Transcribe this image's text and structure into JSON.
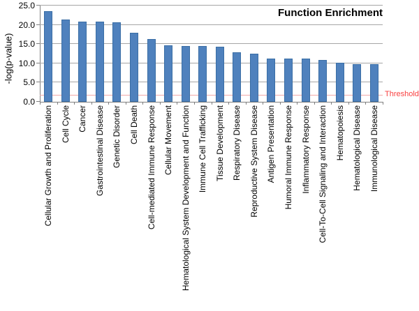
{
  "chart_data": {
    "type": "bar",
    "title": "Function Enrichment",
    "ylabel": "-log(p-value)",
    "xlabel": "",
    "ylim": [
      0,
      25
    ],
    "ytick_labels": [
      "0.0",
      "5.0",
      "10.0",
      "15.0",
      "20.0",
      "25.0"
    ],
    "ytick_values": [
      0,
      5,
      10,
      15,
      20,
      25
    ],
    "grid": true,
    "legend": "none",
    "categories": [
      "Cellular Growth and Proliferation",
      "Cell Cycle",
      "Cancer",
      "Gastrointestinal Disease",
      "Genetic Disorder",
      "Cell Death",
      "Cell-mediated Immune Response",
      "Cellular Movement",
      "Hematological System Development and Function",
      "Immune Cell Trafficking",
      "Tissue Development",
      "Respiratory Disease",
      "Reproductive System Disease",
      "Antigen Presentation",
      "Humoral Immune Response",
      "Inflammatory Response",
      "Cell-To-Cell Signaling and Interaction",
      "Hematopoiesis",
      "Hematological Disease",
      "Immunological Disease"
    ],
    "values": [
      23.5,
      21.3,
      20.9,
      20.9,
      20.6,
      18.0,
      16.3,
      14.6,
      14.5,
      14.5,
      14.3,
      12.8,
      12.5,
      11.3,
      11.3,
      11.3,
      10.8,
      10.1,
      9.8,
      9.8
    ],
    "threshold": {
      "label": "Threshold",
      "value": 1.8
    },
    "colors": {
      "bar_fill": "#4f81bd",
      "bar_border": "#3a6ea5",
      "gridline": "#a6a6a6",
      "axis": "#808080",
      "threshold_line": "#f0a8a8",
      "threshold_text": "#f94040",
      "title_text": "#000000"
    }
  }
}
